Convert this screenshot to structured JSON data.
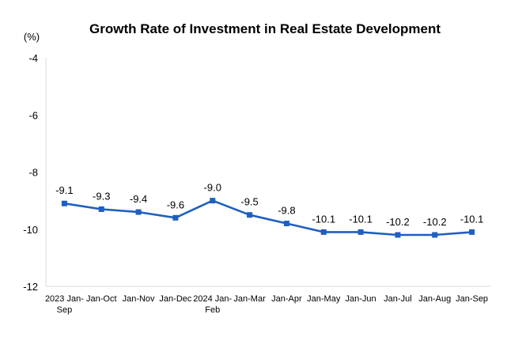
{
  "chart_data": {
    "type": "line",
    "title": "Growth Rate of Investment in Real Estate Development",
    "unit_label": "(%)",
    "xlabel": "",
    "ylabel": "",
    "ylim": [
      -12,
      -4
    ],
    "yticks": [
      -4,
      -6,
      -8,
      -10,
      -12
    ],
    "grid": false,
    "legend": "none",
    "categories": [
      [
        "2023 Jan-",
        "Sep"
      ],
      [
        "Jan-Oct"
      ],
      [
        "Jan-Nov"
      ],
      [
        "Jan-Dec"
      ],
      [
        "2024 Jan-",
        "Feb"
      ],
      [
        "Jan-Mar"
      ],
      [
        "Jan-Apr"
      ],
      [
        "Jan-May"
      ],
      [
        "Jan-Jun"
      ],
      [
        "Jan-Jul"
      ],
      [
        "Jan-Aug"
      ],
      [
        "Jan-Sep"
      ]
    ],
    "series": [
      {
        "color": "#1f5fbf",
        "values": [
          -9.1,
          -9.3,
          -9.4,
          -9.6,
          -9.0,
          -9.5,
          -9.8,
          -10.1,
          -10.1,
          -10.2,
          -10.2,
          -10.1
        ],
        "labels": [
          "-9.1",
          "-9.3",
          "-9.4",
          "-9.6",
          "-9.0",
          "-9.5",
          "-9.8",
          "-10.1",
          "-10.1",
          "-10.2",
          "-10.2",
          "-10.1"
        ]
      }
    ],
    "colors": {
      "axis": "#d9d9d9",
      "line": "#1f5fbf",
      "marker": "#1f5fbf"
    }
  }
}
